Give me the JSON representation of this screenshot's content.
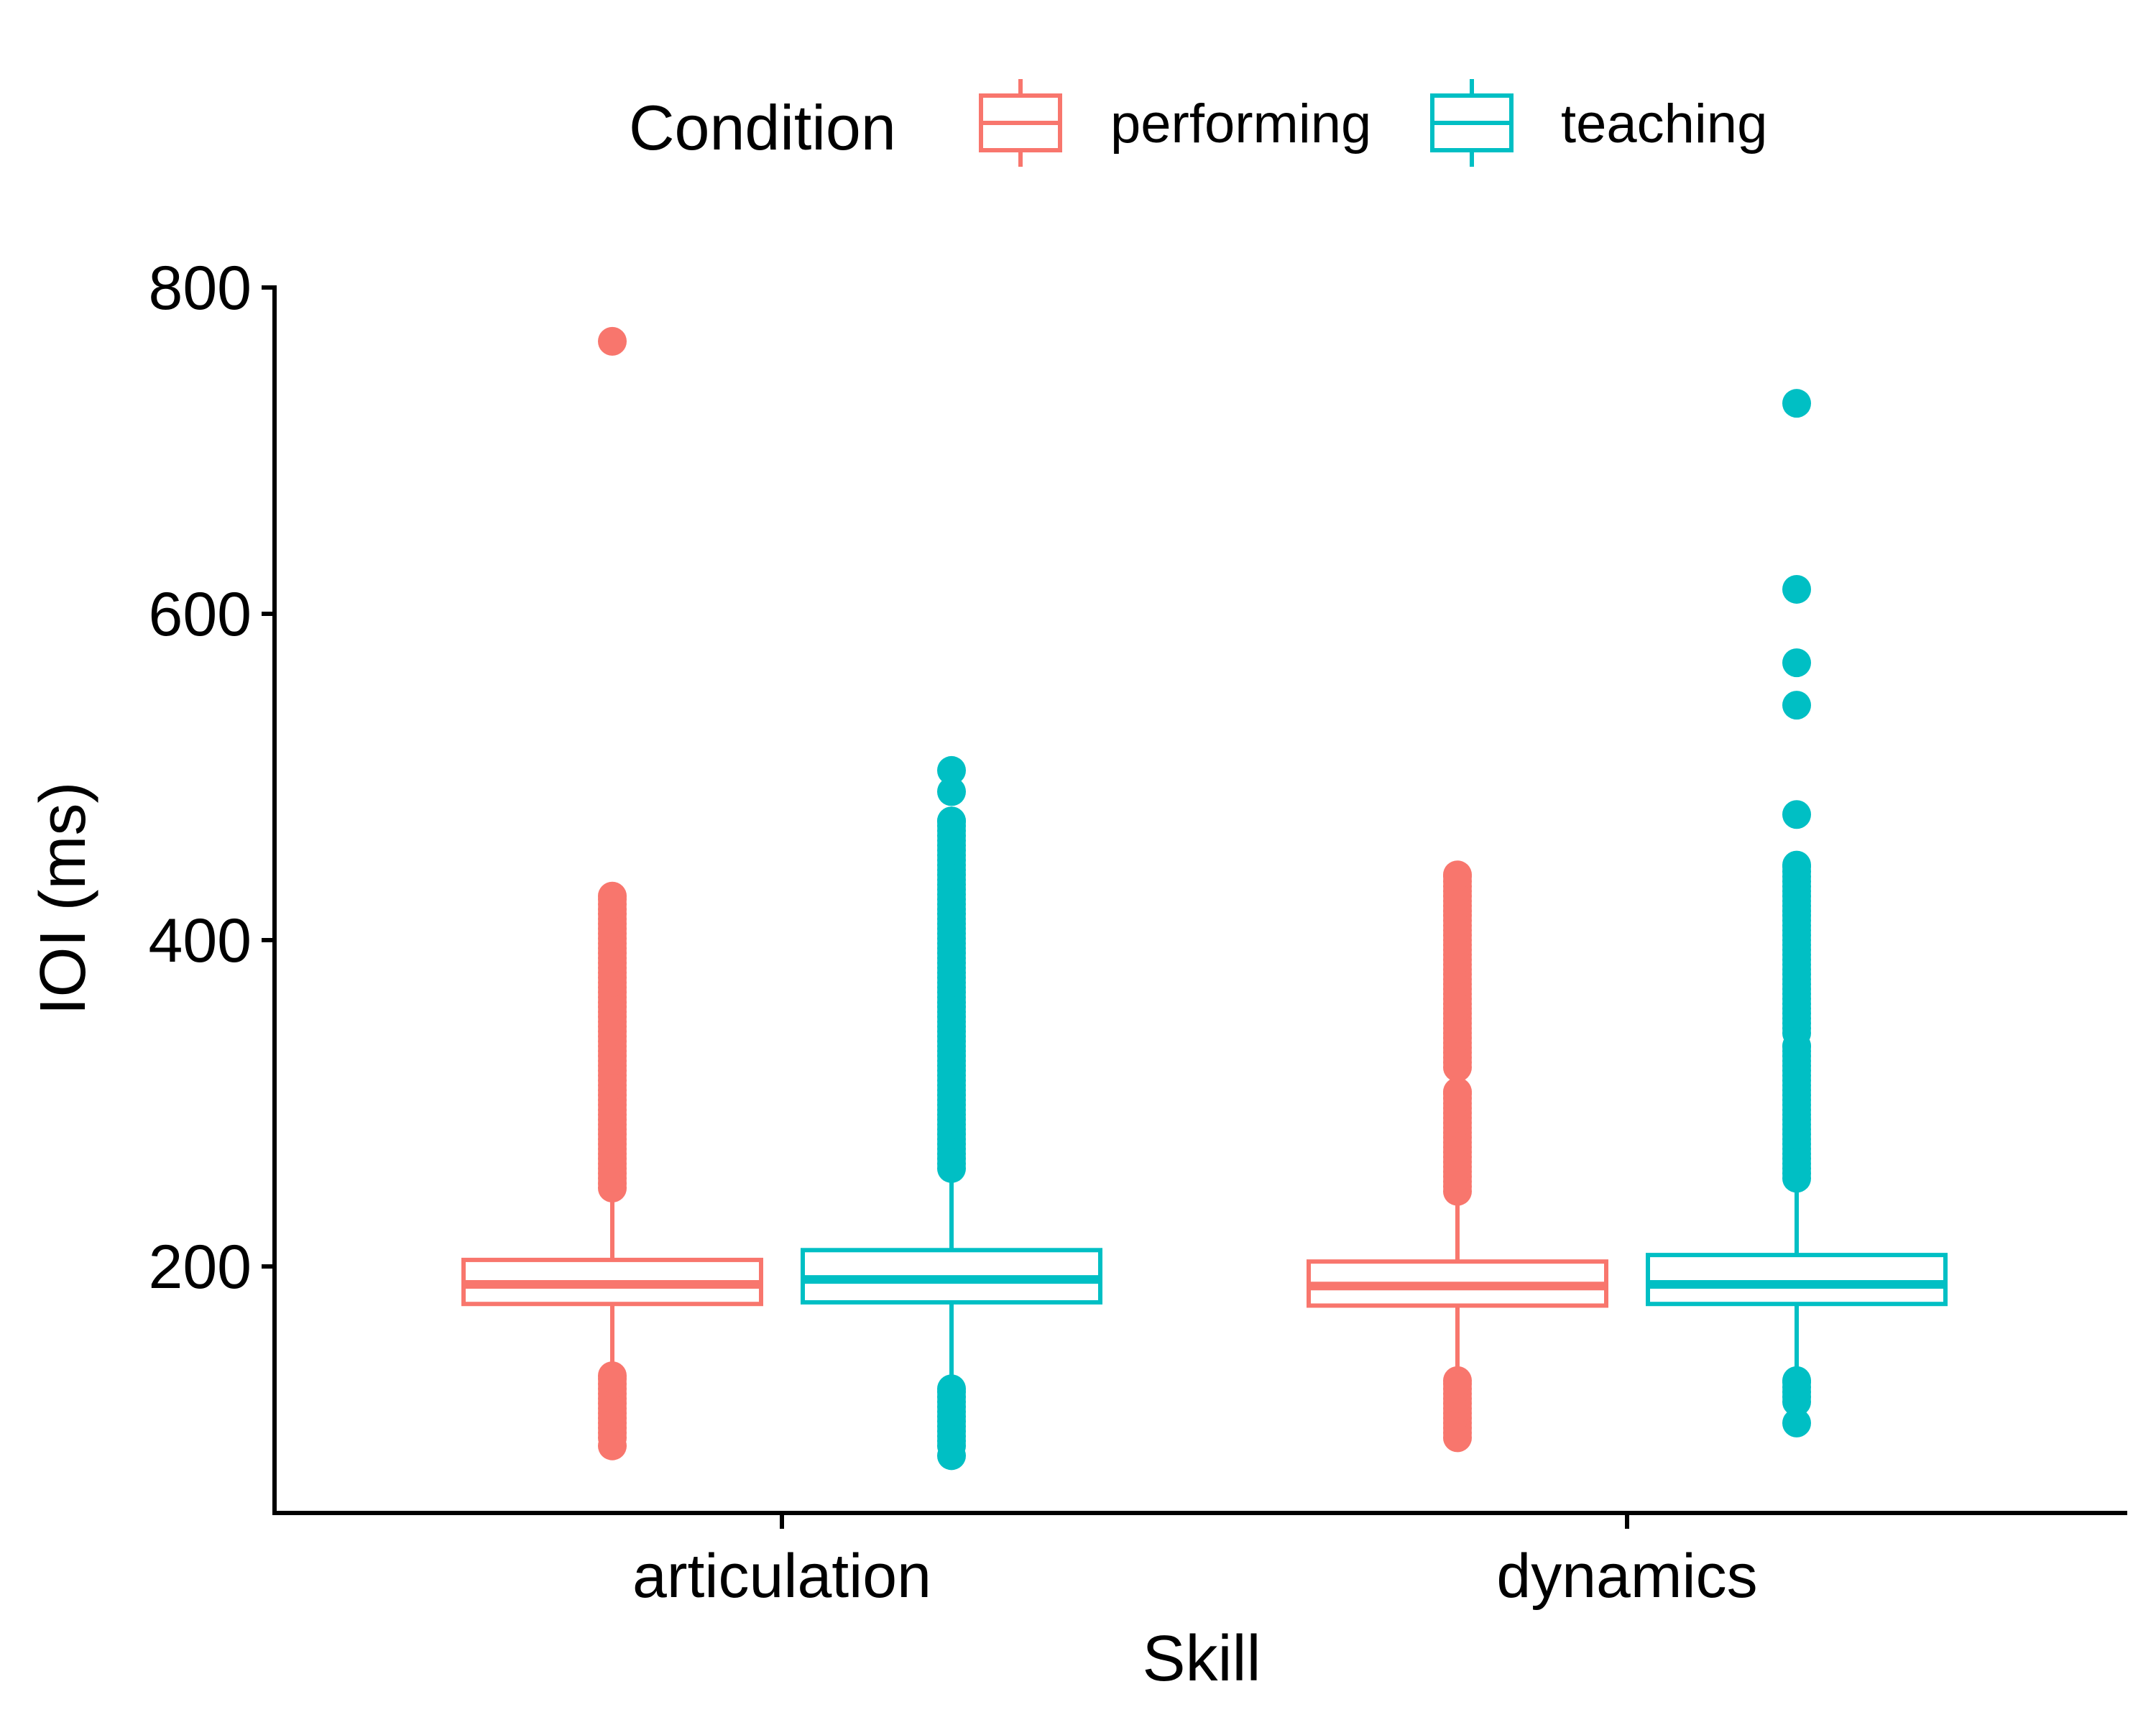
{
  "chart_data": {
    "type": "boxplot",
    "xlabel": "Skill",
    "ylabel": "IOI (ms)",
    "ylim": [
      50,
      800
    ],
    "yticks": [
      200,
      400,
      600,
      800
    ],
    "categories": [
      "articulation",
      "dynamics"
    ],
    "legend": {
      "title": "Condition",
      "placement": "top"
    },
    "grid": false,
    "series": [
      {
        "name": "performing",
        "color": "#F8766D",
        "boxes": [
          {
            "category": "articulation",
            "q1": 177,
            "median": 189,
            "q3": 204,
            "whisker_low": 136,
            "whisker_high": 246,
            "outlier_ranges": [
              [
                248,
                427
              ],
              [
                95,
                133
              ]
            ],
            "outliers": [
              90,
              767
            ]
          },
          {
            "category": "dynamics",
            "q1": 176,
            "median": 188,
            "q3": 203,
            "whisker_low": 134,
            "whisker_high": 245,
            "outlier_ranges": [
              [
                246,
                307
              ],
              [
                322,
                440
              ],
              [
                98,
                130
              ]
            ],
            "outliers": [
              95
            ]
          }
        ]
      },
      {
        "name": "teaching",
        "color": "#00BFC4",
        "boxes": [
          {
            "category": "articulation",
            "q1": 178,
            "median": 192,
            "q3": 210,
            "whisker_low": 128,
            "whisker_high": 258,
            "outlier_ranges": [
              [
                260,
                473
              ],
              [
                90,
                125
              ]
            ],
            "outliers": [
              84,
              491,
              504
            ]
          },
          {
            "category": "dynamics",
            "q1": 177,
            "median": 189,
            "q3": 207,
            "whisker_low": 133,
            "whisker_high": 252,
            "outlier_ranges": [
              [
                254,
                335
              ],
              [
                343,
                446
              ],
              [
                117,
                130
              ]
            ],
            "outliers": [
              104,
              477,
              544,
              570,
              615,
              729
            ]
          }
        ]
      }
    ]
  }
}
